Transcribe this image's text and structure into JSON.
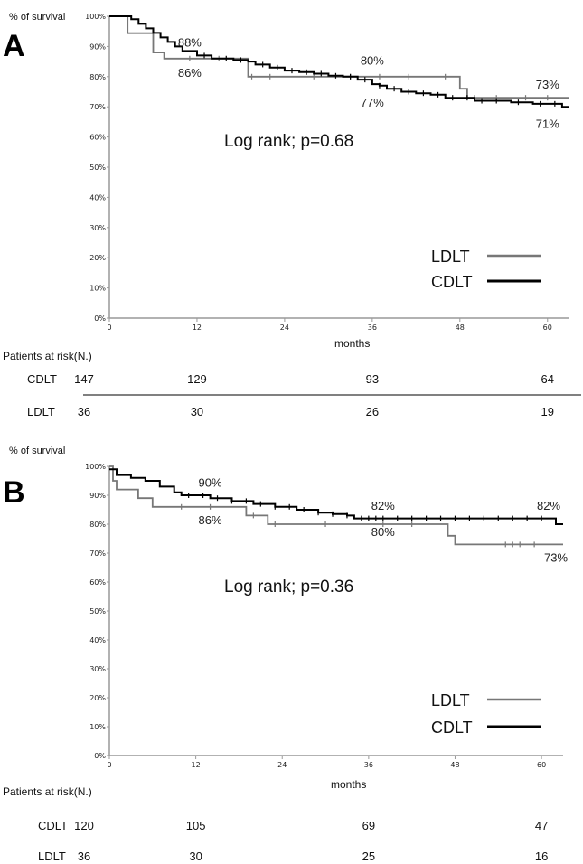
{
  "chart_data": [
    {
      "panel": "A",
      "type": "line",
      "ylabel": "% of survival",
      "xlabel": "months",
      "xlim": [
        0,
        63
      ],
      "ylim": [
        0,
        100
      ],
      "x_ticks": [
        0,
        12,
        24,
        36,
        48,
        60
      ],
      "y_ticks": [
        "0%",
        "10%",
        "20%",
        "30%",
        "40%",
        "50%",
        "60%",
        "70%",
        "80%",
        "90%",
        "100%"
      ],
      "annotation": "Log rank; p=0.68",
      "legend_position": "bottom-right",
      "series": [
        {
          "name": "LDLT",
          "color": "#777777",
          "points": [
            [
              0,
              100
            ],
            [
              2.5,
              100
            ],
            [
              2.5,
              94.4
            ],
            [
              6,
              94.4
            ],
            [
              6,
              88
            ],
            [
              7.5,
              88
            ],
            [
              7.5,
              86
            ],
            [
              19,
              86
            ],
            [
              19,
              80
            ],
            [
              48,
              80
            ],
            [
              48,
              76
            ],
            [
              49,
              76
            ],
            [
              49,
              73
            ],
            [
              63,
              73
            ]
          ],
          "censor_x": [
            11,
            15,
            19.5,
            22,
            28,
            33,
            37,
            41,
            46,
            50,
            53,
            57,
            60
          ]
        },
        {
          "name": "CDLT",
          "color": "#000000",
          "points": [
            [
              0,
              100
            ],
            [
              3,
              100
            ],
            [
              3,
              99
            ],
            [
              4,
              99
            ],
            [
              4,
              97.5
            ],
            [
              5,
              97.5
            ],
            [
              5,
              96
            ],
            [
              6,
              96
            ],
            [
              6,
              94.5
            ],
            [
              7,
              94.5
            ],
            [
              7,
              93
            ],
            [
              8,
              93
            ],
            [
              8,
              91.5
            ],
            [
              9,
              91.5
            ],
            [
              9,
              90
            ],
            [
              10,
              90
            ],
            [
              10,
              88.5
            ],
            [
              12,
              88.5
            ],
            [
              12,
              87
            ],
            [
              14,
              87
            ],
            [
              14,
              86
            ],
            [
              17,
              86
            ],
            [
              17,
              85.5
            ],
            [
              19,
              85.5
            ],
            [
              19,
              85
            ],
            [
              20,
              85
            ],
            [
              20,
              84
            ],
            [
              22,
              84
            ],
            [
              22,
              83
            ],
            [
              24,
              83
            ],
            [
              24,
              82
            ],
            [
              26,
              82
            ],
            [
              26,
              81.5
            ],
            [
              28,
              81.5
            ],
            [
              28,
              81
            ],
            [
              30,
              81
            ],
            [
              30,
              80.3
            ],
            [
              32,
              80.3
            ],
            [
              32,
              80
            ],
            [
              34,
              80
            ],
            [
              34,
              79
            ],
            [
              36,
              79
            ],
            [
              36,
              77.5
            ],
            [
              37,
              77.5
            ],
            [
              37,
              77
            ],
            [
              38,
              77
            ],
            [
              38,
              76
            ],
            [
              40,
              76
            ],
            [
              40,
              75
            ],
            [
              42,
              75
            ],
            [
              42,
              74.5
            ],
            [
              44,
              74.5
            ],
            [
              44,
              74
            ],
            [
              46,
              74
            ],
            [
              46,
              73
            ],
            [
              50,
              73
            ],
            [
              50,
              72
            ],
            [
              55,
              72
            ],
            [
              55,
              71.5
            ],
            [
              58,
              71.5
            ],
            [
              58,
              71
            ],
            [
              62,
              71
            ],
            [
              62,
              70
            ],
            [
              63,
              70
            ]
          ],
          "censor_x": [
            13,
            16,
            18,
            21,
            23,
            25,
            27,
            29,
            31,
            33,
            35,
            37,
            39,
            41,
            43,
            45,
            47,
            49,
            51,
            53,
            56,
            59,
            61
          ]
        }
      ],
      "labels": [
        {
          "text": "88%",
          "x": 11,
          "y": 90,
          "series": "CDLT"
        },
        {
          "text": "86%",
          "x": 11,
          "y": 80,
          "series": "LDLT"
        },
        {
          "text": "80%",
          "x": 36,
          "y": 84,
          "series": "LDLT"
        },
        {
          "text": "77%",
          "x": 36,
          "y": 70,
          "series": "CDLT"
        },
        {
          "text": "73%",
          "x": 60,
          "y": 76,
          "series": "LDLT"
        },
        {
          "text": "71%",
          "x": 60,
          "y": 63,
          "series": "CDLT"
        }
      ],
      "risk_table": {
        "title": "Patients at risk(N.)",
        "rows": [
          {
            "label": "CDLT",
            "values": [
              "147",
              "129",
              "93",
              "64"
            ],
            "x": [
              0,
              12,
              36,
              60
            ]
          },
          {
            "label": "LDLT",
            "values": [
              "36",
              "30",
              "26",
              "19"
            ],
            "x": [
              0,
              12,
              36,
              60
            ]
          }
        ]
      }
    },
    {
      "panel": "B",
      "type": "line",
      "ylabel": "% of survival",
      "xlabel": "months",
      "xlim": [
        0,
        63
      ],
      "ylim": [
        0,
        100
      ],
      "x_ticks": [
        0,
        12,
        24,
        36,
        48,
        60
      ],
      "y_ticks": [
        "0%",
        "10%",
        "20%",
        "30%",
        "40%",
        "50%",
        "60%",
        "70%",
        "80%",
        "90%",
        "100%"
      ],
      "annotation": "Log rank; p=0.36",
      "legend_position": "bottom-right",
      "series": [
        {
          "name": "LDLT",
          "color": "#777777",
          "points": [
            [
              0,
              100
            ],
            [
              0.5,
              100
            ],
            [
              0.5,
              95
            ],
            [
              1,
              95
            ],
            [
              1,
              92
            ],
            [
              4,
              92
            ],
            [
              4,
              89
            ],
            [
              6,
              89
            ],
            [
              6,
              86
            ],
            [
              19,
              86
            ],
            [
              19,
              83
            ],
            [
              22,
              83
            ],
            [
              22,
              80
            ],
            [
              47,
              80
            ],
            [
              47,
              76
            ],
            [
              48,
              76
            ],
            [
              48,
              73
            ],
            [
              63,
              73
            ]
          ],
          "censor_x": [
            10,
            14,
            20,
            23,
            30,
            38,
            42,
            55,
            56,
            57,
            59
          ]
        },
        {
          "name": "CDLT",
          "color": "#000000",
          "points": [
            [
              0,
              99
            ],
            [
              1,
              99
            ],
            [
              1,
              97
            ],
            [
              3,
              97
            ],
            [
              3,
              96
            ],
            [
              5,
              96
            ],
            [
              5,
              95
            ],
            [
              7,
              95
            ],
            [
              7,
              93
            ],
            [
              9,
              93
            ],
            [
              9,
              91
            ],
            [
              10,
              91
            ],
            [
              10,
              90
            ],
            [
              14,
              90
            ],
            [
              14,
              89
            ],
            [
              17,
              89
            ],
            [
              17,
              88
            ],
            [
              20,
              88
            ],
            [
              20,
              87
            ],
            [
              23,
              87
            ],
            [
              23,
              86
            ],
            [
              26,
              86
            ],
            [
              26,
              85
            ],
            [
              29,
              85
            ],
            [
              29,
              84
            ],
            [
              31,
              84
            ],
            [
              31,
              83.5
            ],
            [
              33,
              83.5
            ],
            [
              33,
              83
            ],
            [
              34,
              83
            ],
            [
              34,
              82
            ],
            [
              62,
              82
            ],
            [
              62,
              80
            ],
            [
              63,
              80
            ]
          ],
          "censor_x": [
            11,
            13,
            15,
            17,
            19,
            21,
            23,
            25,
            27,
            29,
            31,
            33,
            35,
            36,
            37,
            38,
            40,
            42,
            44,
            46,
            48,
            50,
            52,
            54,
            56,
            58,
            60
          ]
        }
      ],
      "labels": [
        {
          "text": "90%",
          "x": 14,
          "y": 93,
          "series": "CDLT"
        },
        {
          "text": "86%",
          "x": 14,
          "y": 80,
          "series": "LDLT"
        },
        {
          "text": "82%",
          "x": 38,
          "y": 85,
          "series": "CDLT"
        },
        {
          "text": "80%",
          "x": 38,
          "y": 76,
          "series": "LDLT"
        },
        {
          "text": "82%",
          "x": 61,
          "y": 85,
          "series": "CDLT"
        },
        {
          "text": "73%",
          "x": 62,
          "y": 67,
          "series": "LDLT"
        }
      ],
      "risk_table": {
        "title": "Patients at risk(N.)",
        "rows": [
          {
            "label": "CDLT",
            "values": [
              "120",
              "105",
              "69",
              "47"
            ],
            "x": [
              0,
              12,
              36,
              60
            ]
          },
          {
            "label": "LDLT",
            "values": [
              "36",
              "30",
              "25",
              "16"
            ],
            "x": [
              0,
              12,
              36,
              60
            ]
          }
        ]
      }
    }
  ]
}
